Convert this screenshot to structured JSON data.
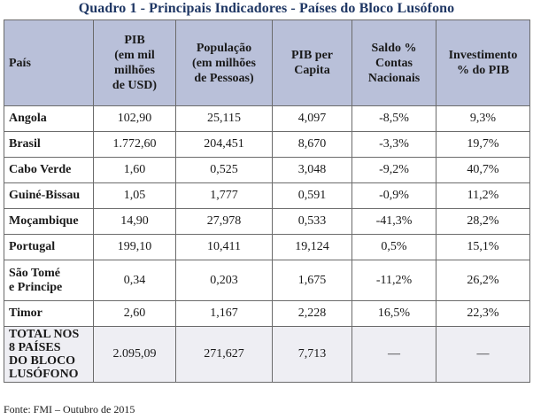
{
  "title": "Quadro 1 - Principais Indicadores - Países do Bloco Lusófono",
  "columns": [
    "País",
    "PIB\n(em mil\nmilhões\nde USD)",
    "População\n(em milhões\nde Pessoas)",
    "PIB per\nCapita",
    "Saldo %\nContas\nNacionais",
    "Investimento\n% do PIB"
  ],
  "rows": [
    {
      "country": "Angola",
      "pib": "102,90",
      "populacao": "25,115",
      "pib_per_capita": "4,097",
      "saldo": "-8,5%",
      "investimento": "9,3%"
    },
    {
      "country": "Brasil",
      "pib": "1.772,60",
      "populacao": "204,451",
      "pib_per_capita": "8,670",
      "saldo": "-3,3%",
      "investimento": "19,7%"
    },
    {
      "country": "Cabo Verde",
      "pib": "1,60",
      "populacao": "0,525",
      "pib_per_capita": "3,048",
      "saldo": "-9,2%",
      "investimento": "40,7%"
    },
    {
      "country": "Guiné-Bissau",
      "pib": "1,05",
      "populacao": "1,777",
      "pib_per_capita": "0,591",
      "saldo": "-0,9%",
      "investimento": "11,2%"
    },
    {
      "country": "Moçambique",
      "pib": "14,90",
      "populacao": "27,978",
      "pib_per_capita": "0,533",
      "saldo": "-41,3%",
      "investimento": "28,2%"
    },
    {
      "country": "Portugal",
      "pib": "199,10",
      "populacao": "10,411",
      "pib_per_capita": "19,124",
      "saldo": "0,5%",
      "investimento": "15,1%"
    },
    {
      "country": "São Tomé\ne Principe",
      "pib": "0,34",
      "populacao": "0,203",
      "pib_per_capita": "1,675",
      "saldo": "-11,2%",
      "investimento": "26,2%"
    },
    {
      "country": "Timor",
      "pib": "2,60",
      "populacao": "1,167",
      "pib_per_capita": "2,228",
      "saldo": "16,5%",
      "investimento": "22,3%"
    }
  ],
  "total": {
    "country": "TOTAL NOS\n8 PAÍSES\nDO BLOCO\nLUSÓFONO",
    "pib": "2.095,09",
    "populacao": "271,627",
    "pib_per_capita": "7,713",
    "saldo": "—",
    "investimento": "—"
  },
  "source": "Fonte: FMI – Outubro de 2015"
}
